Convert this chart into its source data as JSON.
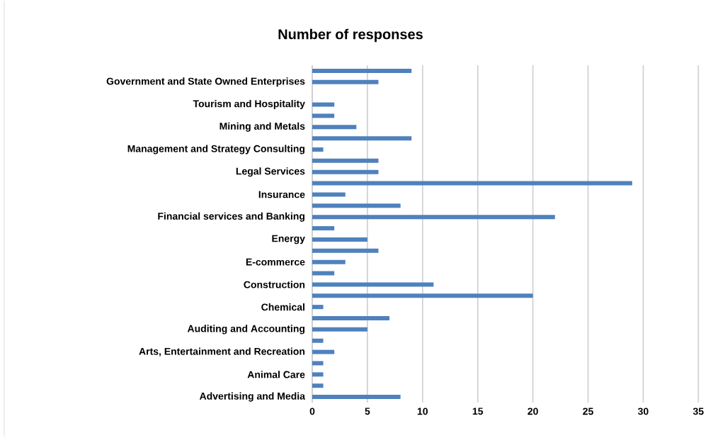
{
  "chart_data": {
    "type": "bar",
    "orientation": "horizontal",
    "title": "Number of responses",
    "categories": [
      null,
      "Government and State Owned Enterprises",
      null,
      "Tourism and Hospitality",
      null,
      "Mining and Metals",
      null,
      "Management and Strategy Consulting",
      null,
      "Legal Services",
      null,
      "Insurance",
      null,
      "Financial services and Banking",
      null,
      "Energy",
      null,
      "E-commerce",
      null,
      "Construction",
      null,
      "Chemical",
      null,
      "Auditing and Accounting",
      null,
      "Arts, Entertainment and Recreation",
      null,
      "Animal Care",
      null,
      "Advertising and Media"
    ],
    "values": [
      9,
      6,
      0,
      2,
      2,
      4,
      9,
      1,
      6,
      6,
      29,
      3,
      8,
      22,
      2,
      5,
      6,
      3,
      2,
      11,
      20,
      1,
      7,
      5,
      1,
      2,
      1,
      1,
      1,
      8
    ],
    "color": "#4f81bd",
    "xlim": [
      0,
      35
    ],
    "xticks": [
      0,
      5,
      10,
      15,
      20,
      25,
      30,
      35
    ],
    "grid": "x"
  }
}
